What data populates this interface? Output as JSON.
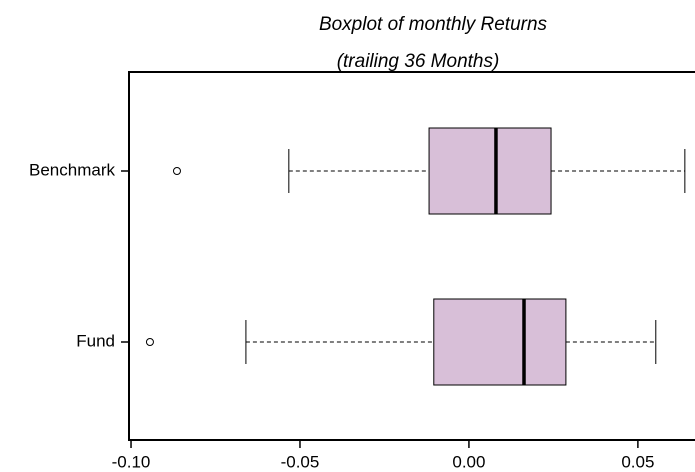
{
  "chart_data": {
    "type": "boxplot",
    "title": "Boxplot of monthly Returns",
    "subtitle": "(trailing 36 Months)",
    "color": "#d8bfd8",
    "boxes": [
      {
        "name": "Benchmark",
        "whisker_low": -0.0533,
        "q1": -0.0118,
        "median": 0.008,
        "q3": 0.0243,
        "whisker_high": 0.0639,
        "outliers": [
          -0.0864
        ]
      },
      {
        "name": "Fund",
        "whisker_low": -0.066,
        "q1": -0.0104,
        "median": 0.0163,
        "q3": 0.0287,
        "whisker_high": 0.0553,
        "outliers": [
          -0.0944
        ]
      }
    ],
    "xlim": [
      -0.1006,
      0.0672
    ],
    "xticks": [
      {
        "value": -0.1,
        "label": "-0.10"
      },
      -0.05,
      {
        "value": 0,
        "label": "0.00"
      },
      0.05
    ]
  }
}
